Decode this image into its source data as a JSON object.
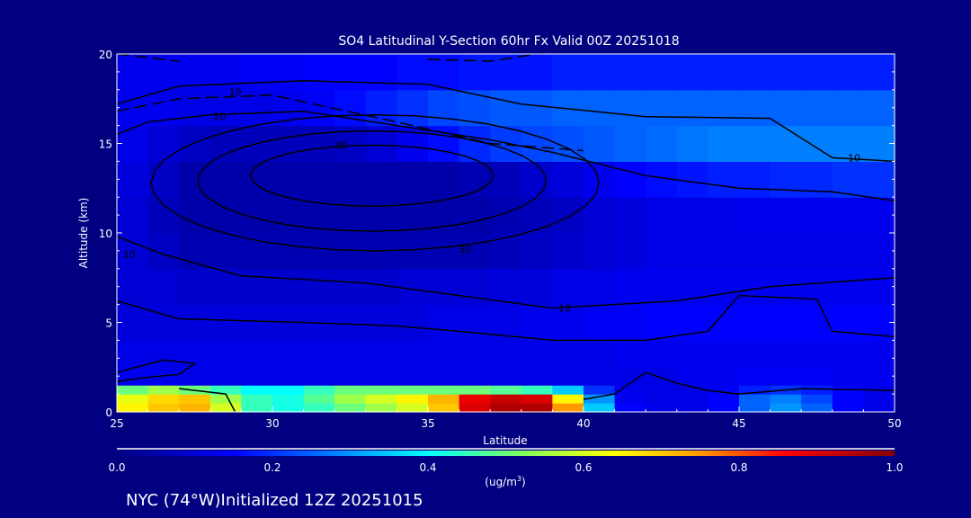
{
  "chart_data": {
    "type": "heatmap",
    "title": "SO4 Latitudinal Y-Section 60hr  Fx Valid 00Z 20251018",
    "xlabel": "Latitude",
    "ylabel": "Altitude (km)",
    "xlim": [
      25,
      50
    ],
    "ylim": [
      0,
      20
    ],
    "xticks": [
      "25",
      "30",
      "35",
      "40",
      "45",
      "50"
    ],
    "yticks": [
      "0",
      "5",
      "10",
      "15",
      "20"
    ],
    "colorbar": {
      "range": [
        0,
        1
      ],
      "ticks": [
        "0.0",
        "0.2",
        "0.4",
        "0.6",
        "0.8",
        "1.0"
      ],
      "unit_label": "(ug/m",
      "unit_sup": "3",
      "unit_close": ")",
      "stops": [
        [
          0.0,
          "#000080"
        ],
        [
          0.15,
          "#0000ff"
        ],
        [
          0.28,
          "#0080ff"
        ],
        [
          0.4,
          "#00ffff"
        ],
        [
          0.52,
          "#80ff60"
        ],
        [
          0.64,
          "#ffff00"
        ],
        [
          0.75,
          "#ff9900"
        ],
        [
          0.86,
          "#ff0000"
        ],
        [
          1.0,
          "#800000"
        ]
      ]
    },
    "grid": {
      "lat_edges": [
        25,
        26,
        27,
        28,
        29,
        30,
        31,
        32,
        33,
        34,
        35,
        36,
        37,
        38,
        39,
        40,
        41,
        42,
        43,
        44,
        45,
        46,
        47,
        48,
        49,
        50
      ],
      "alt_edges": [
        0,
        0.5,
        1,
        1.5,
        2.5,
        4,
        6,
        8,
        10,
        12,
        14,
        16,
        18,
        20
      ],
      "values": [
        [
          0.65,
          0.7,
          0.72,
          0.6,
          0.45,
          0.42,
          0.45,
          0.5,
          0.55,
          0.6,
          0.7,
          0.9,
          0.95,
          0.95,
          0.75,
          0.35,
          0.15,
          0.12,
          0.12,
          0.15,
          0.25,
          0.3,
          0.25,
          0.15,
          0.12
        ],
        [
          0.62,
          0.68,
          0.7,
          0.55,
          0.45,
          0.42,
          0.48,
          0.55,
          0.6,
          0.65,
          0.72,
          0.88,
          0.92,
          0.9,
          0.65,
          0.3,
          0.13,
          0.12,
          0.12,
          0.15,
          0.25,
          0.28,
          0.22,
          0.15,
          0.12
        ],
        [
          0.5,
          0.55,
          0.5,
          0.45,
          0.4,
          0.4,
          0.45,
          0.5,
          0.5,
          0.5,
          0.5,
          0.5,
          0.48,
          0.45,
          0.35,
          0.2,
          0.13,
          0.12,
          0.12,
          0.14,
          0.18,
          0.2,
          0.18,
          0.15,
          0.12
        ],
        [
          0.13,
          0.13,
          0.12,
          0.12,
          0.12,
          0.12,
          0.12,
          0.12,
          0.12,
          0.12,
          0.12,
          0.12,
          0.12,
          0.12,
          0.12,
          0.12,
          0.12,
          0.12,
          0.13,
          0.13,
          0.14,
          0.14,
          0.14,
          0.13,
          0.13
        ],
        [
          0.12,
          0.12,
          0.12,
          0.12,
          0.12,
          0.12,
          0.12,
          0.12,
          0.12,
          0.12,
          0.12,
          0.12,
          0.12,
          0.12,
          0.12,
          0.12,
          0.13,
          0.13,
          0.13,
          0.13,
          0.13,
          0.13,
          0.13,
          0.13,
          0.13
        ],
        [
          0.11,
          0.11,
          0.11,
          0.11,
          0.11,
          0.11,
          0.11,
          0.11,
          0.11,
          0.11,
          0.12,
          0.12,
          0.12,
          0.13,
          0.13,
          0.14,
          0.14,
          0.15,
          0.15,
          0.15,
          0.15,
          0.15,
          0.15,
          0.15,
          0.15
        ],
        [
          0.1,
          0.1,
          0.09,
          0.09,
          0.09,
          0.09,
          0.09,
          0.09,
          0.09,
          0.1,
          0.1,
          0.1,
          0.11,
          0.11,
          0.12,
          0.12,
          0.13,
          0.13,
          0.13,
          0.13,
          0.13,
          0.13,
          0.13,
          0.13,
          0.13
        ],
        [
          0.1,
          0.08,
          0.06,
          0.06,
          0.06,
          0.06,
          0.06,
          0.06,
          0.06,
          0.06,
          0.06,
          0.06,
          0.07,
          0.08,
          0.09,
          0.1,
          0.11,
          0.12,
          0.12,
          0.12,
          0.12,
          0.12,
          0.12,
          0.12,
          0.12
        ],
        [
          0.1,
          0.07,
          0.05,
          0.05,
          0.05,
          0.05,
          0.05,
          0.05,
          0.05,
          0.05,
          0.05,
          0.05,
          0.06,
          0.07,
          0.08,
          0.1,
          0.11,
          0.12,
          0.12,
          0.12,
          0.13,
          0.13,
          0.13,
          0.13,
          0.13
        ],
        [
          0.11,
          0.08,
          0.05,
          0.05,
          0.05,
          0.05,
          0.05,
          0.05,
          0.05,
          0.05,
          0.05,
          0.06,
          0.07,
          0.09,
          0.11,
          0.13,
          0.15,
          0.16,
          0.17,
          0.18,
          0.18,
          0.19,
          0.19,
          0.2,
          0.2
        ],
        [
          0.12,
          0.1,
          0.08,
          0.07,
          0.07,
          0.07,
          0.07,
          0.08,
          0.1,
          0.13,
          0.16,
          0.19,
          0.21,
          0.22,
          0.23,
          0.24,
          0.25,
          0.26,
          0.27,
          0.28,
          0.28,
          0.28,
          0.28,
          0.28,
          0.28
        ],
        [
          0.13,
          0.13,
          0.12,
          0.12,
          0.12,
          0.13,
          0.14,
          0.16,
          0.18,
          0.2,
          0.22,
          0.23,
          0.24,
          0.24,
          0.25,
          0.25,
          0.25,
          0.25,
          0.25,
          0.25,
          0.25,
          0.25,
          0.25,
          0.25,
          0.25
        ],
        [
          0.13,
          0.13,
          0.13,
          0.13,
          0.14,
          0.14,
          0.15,
          0.15,
          0.15,
          0.16,
          0.16,
          0.17,
          0.17,
          0.17,
          0.18,
          0.18,
          0.18,
          0.18,
          0.18,
          0.18,
          0.18,
          0.18,
          0.18,
          0.18,
          0.18
        ]
      ]
    },
    "contours": [
      {
        "label": "10",
        "label_at": [
          48.7,
          14.2
        ],
        "dashed": false,
        "points": [
          [
            25,
            17.2
          ],
          [
            27,
            18.2
          ],
          [
            31,
            18.5
          ],
          [
            35,
            18.3
          ],
          [
            38,
            17.2
          ],
          [
            42,
            16.5
          ],
          [
            46,
            16.4
          ],
          [
            47,
            15.3
          ],
          [
            48,
            14.2
          ],
          [
            50,
            14.0
          ]
        ]
      },
      {
        "label": "20",
        "label_at": [
          28.3,
          16.5
        ],
        "dashed": false,
        "points": [
          [
            25,
            15.5
          ],
          [
            26,
            16.2
          ],
          [
            28,
            16.6
          ],
          [
            31,
            16.8
          ],
          [
            34,
            16.0
          ],
          [
            37,
            15.2
          ],
          [
            39,
            14.5
          ],
          [
            42,
            13.2
          ],
          [
            45,
            12.5
          ],
          [
            48,
            12.3
          ],
          [
            50,
            11.8
          ]
        ]
      },
      {
        "label": "10",
        "label_at": [
          28.8,
          17.9
        ],
        "dashed": true,
        "points": [
          [
            25,
            16.8
          ],
          [
            27,
            17.5
          ],
          [
            30,
            17.7
          ],
          [
            34,
            16.2
          ],
          [
            37,
            15.0
          ],
          [
            40,
            14.6
          ]
        ]
      },
      {
        "label": "",
        "dashed": true,
        "points": [
          [
            25,
            20.0
          ],
          [
            27,
            19.6
          ]
        ]
      },
      {
        "label": "",
        "dashed": true,
        "points": [
          [
            35,
            19.7
          ],
          [
            37,
            19.6
          ],
          [
            38.5,
            20.0
          ]
        ]
      },
      {
        "label": "30",
        "label_at": [
          36.2,
          9.1
        ],
        "dashed": false,
        "ellipse": [
          33.3,
          12.8,
          7.2,
          3.8
        ]
      },
      {
        "label": "30",
        "label_at": [
          32.2,
          14.9
        ],
        "dashed": false,
        "ellipse": [
          33.2,
          12.9,
          5.6,
          2.8
        ]
      },
      {
        "label": "",
        "dashed": false,
        "ellipse": [
          33.2,
          13.2,
          3.9,
          1.7
        ]
      },
      {
        "label": "10",
        "label_at": [
          25.4,
          8.8
        ],
        "dashed": false,
        "points": [
          [
            25,
            9.8
          ],
          [
            26.5,
            8.8
          ],
          [
            29,
            7.6
          ],
          [
            33,
            7.2
          ],
          [
            36,
            6.5
          ],
          [
            39,
            5.8
          ],
          [
            43,
            6.2
          ],
          [
            46,
            7.0
          ],
          [
            50,
            7.5
          ]
        ]
      },
      {
        "label": "10",
        "label_at": [
          39.4,
          5.8
        ],
        "dashed": false,
        "points": [
          [
            25,
            6.2
          ],
          [
            27,
            5.2
          ],
          [
            31,
            5.0
          ],
          [
            34,
            4.8
          ],
          [
            36,
            4.5
          ],
          [
            39,
            4.0
          ],
          [
            42,
            4.0
          ],
          [
            44,
            4.5
          ],
          [
            45,
            6.5
          ],
          [
            47.5,
            6.3
          ],
          [
            48,
            4.5
          ],
          [
            50,
            4.2
          ]
        ]
      },
      {
        "label": "",
        "dashed": false,
        "points": [
          [
            25,
            2.2
          ],
          [
            26.5,
            2.9
          ],
          [
            27.5,
            2.7
          ],
          [
            27,
            2.1
          ],
          [
            25.8,
            1.9
          ],
          [
            25,
            1.7
          ]
        ]
      },
      {
        "label": "",
        "dashed": false,
        "points": [
          [
            27,
            1.3
          ],
          [
            28.5,
            1.0
          ],
          [
            28.8,
            0.0
          ]
        ]
      },
      {
        "label": "",
        "dashed": false,
        "points": [
          [
            40,
            0.7
          ],
          [
            41,
            1.0
          ],
          [
            42,
            2.2
          ],
          [
            43,
            1.6
          ],
          [
            44,
            1.2
          ],
          [
            45,
            1.0
          ],
          [
            47,
            1.3
          ],
          [
            50,
            1.2
          ]
        ]
      }
    ]
  },
  "footer": {
    "text": "NYC (74°W)Initialized 12Z 20251015"
  }
}
